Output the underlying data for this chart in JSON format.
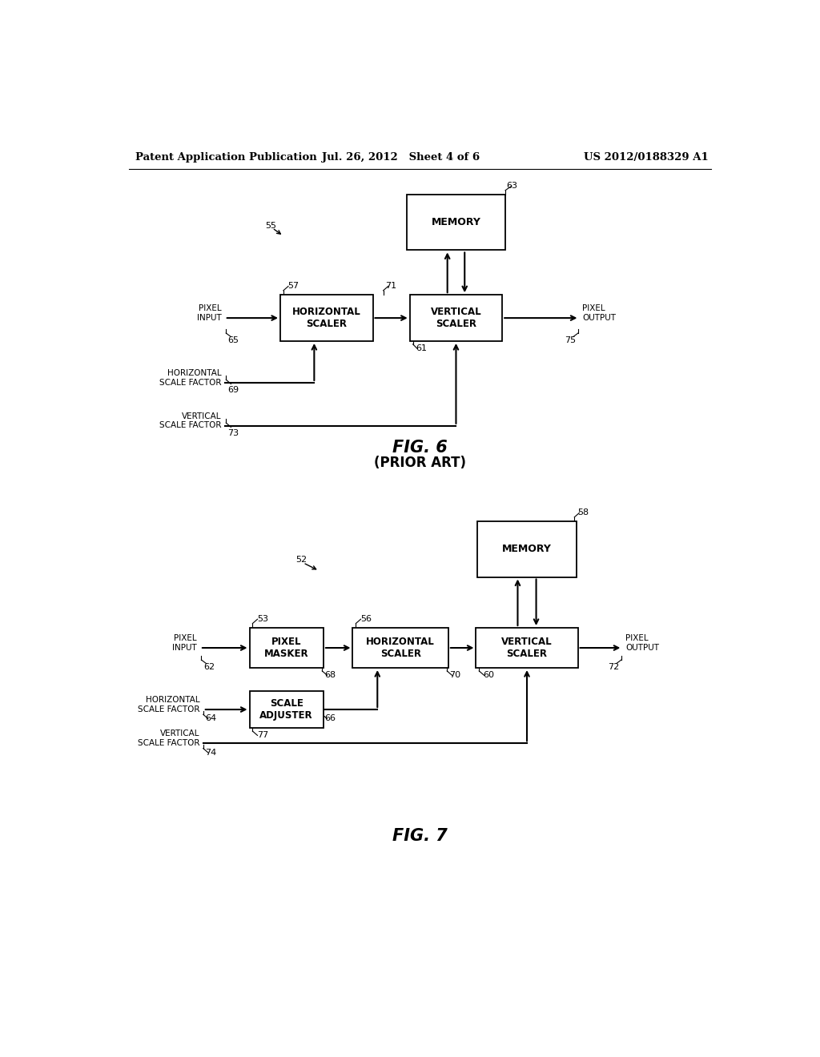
{
  "bg_color": "#ffffff",
  "header_left": "Patent Application Publication",
  "header_mid": "Jul. 26, 2012   Sheet 4 of 6",
  "header_right": "US 2012/0188329 A1",
  "fig6_label": "FIG. 6",
  "fig6_sub": "(PRIOR ART)",
  "fig7_label": "FIG. 7",
  "fig6": {
    "mem_ref": "63",
    "hs_ref": "57",
    "vs_ref": "61",
    "pi_ref": "65",
    "po_ref": "75",
    "hs_out_ref": "71",
    "hsf_ref": "69",
    "vsf_ref": "73",
    "sys_ref": "55"
  },
  "fig7": {
    "mem_ref": "58",
    "pm_ref": "53",
    "sa_ref": "77",
    "hs_ref": "56",
    "vs_ref": "60",
    "pi_ref": "62",
    "po_ref": "72",
    "pm_out_ref": "68",
    "hs_out_ref": "70",
    "hsf_ref": "64",
    "vsf_ref": "74",
    "sa_out_ref": "66",
    "sys_ref": "52"
  }
}
